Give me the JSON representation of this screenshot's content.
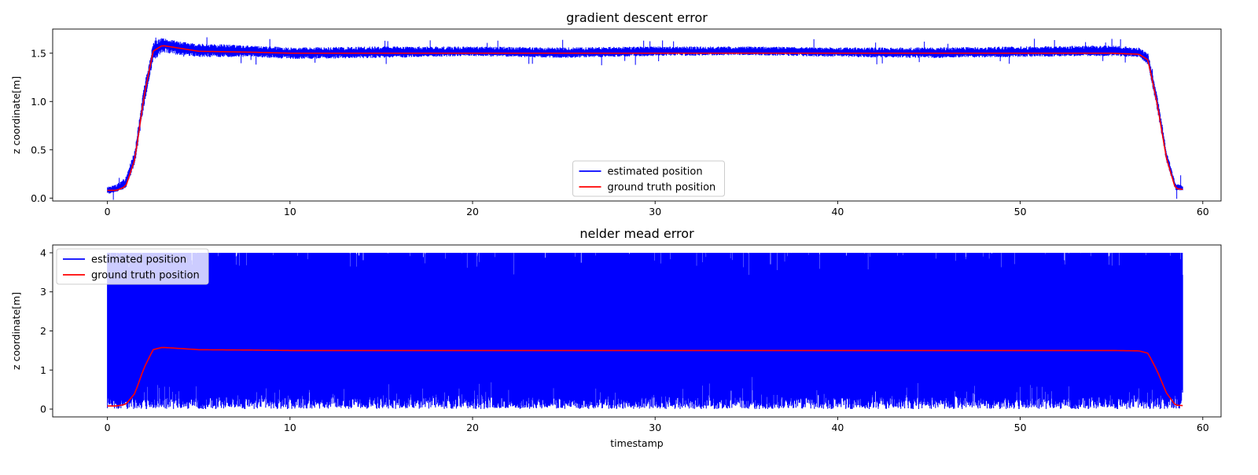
{
  "figure": {
    "background": "#ffffff"
  },
  "chart_data": [
    {
      "type": "line",
      "title": "gradient descent error",
      "xlabel": "",
      "ylabel": "z coordinate[m]",
      "xlim": [
        -3,
        61
      ],
      "ylim": [
        -0.03,
        1.75
      ],
      "xticks": [
        0,
        10,
        20,
        30,
        40,
        50,
        60
      ],
      "xtick_labels": [
        "0",
        "10",
        "20",
        "30",
        "40",
        "50",
        "60"
      ],
      "yticks": [
        0.0,
        0.5,
        1.0,
        1.5
      ],
      "ytick_labels": [
        "0.0",
        "0.5",
        "1.0",
        "1.5"
      ],
      "grid": false,
      "legend_position": "bottom-center",
      "series": [
        {
          "name": "estimated position",
          "color": "#0000ff",
          "x": [
            0,
            0.5,
            1,
            1.5,
            2,
            2.5,
            3,
            4,
            5,
            8,
            10,
            15,
            20,
            25,
            30,
            35,
            40,
            45,
            50,
            55,
            56.5,
            57,
            57.5,
            58,
            58.5,
            58.9
          ],
          "y": [
            0.08,
            0.09,
            0.15,
            0.42,
            1.05,
            1.5,
            1.6,
            1.56,
            1.53,
            1.52,
            1.5,
            1.51,
            1.51,
            1.5,
            1.52,
            1.52,
            1.51,
            1.5,
            1.51,
            1.52,
            1.5,
            1.44,
            1.0,
            0.45,
            0.12,
            0.1
          ],
          "band_low": [
            0.04,
            0.06,
            0.1,
            0.35,
            0.95,
            1.42,
            1.5,
            1.48,
            1.46,
            1.46,
            1.44,
            1.45,
            1.47,
            1.45,
            1.47,
            1.48,
            1.46,
            1.45,
            1.46,
            1.47,
            1.46,
            1.38,
            0.92,
            0.38,
            0.08,
            0.08
          ],
          "band_high": [
            0.12,
            0.14,
            0.22,
            0.5,
            1.15,
            1.62,
            1.66,
            1.62,
            1.6,
            1.58,
            1.56,
            1.57,
            1.57,
            1.56,
            1.57,
            1.57,
            1.56,
            1.56,
            1.57,
            1.58,
            1.56,
            1.5,
            1.08,
            0.5,
            0.15,
            0.13
          ]
        },
        {
          "name": "ground truth position",
          "color": "#ff0000",
          "x": [
            0,
            0.5,
            1,
            1.5,
            2,
            2.5,
            3,
            4,
            5,
            8,
            10,
            15,
            20,
            25,
            30,
            35,
            40,
            45,
            50,
            55,
            56.5,
            57,
            57.5,
            58,
            58.5,
            58.9
          ],
          "y": [
            0.08,
            0.08,
            0.12,
            0.4,
            1.05,
            1.52,
            1.58,
            1.55,
            1.52,
            1.51,
            1.5,
            1.5,
            1.5,
            1.5,
            1.5,
            1.5,
            1.5,
            1.5,
            1.5,
            1.5,
            1.49,
            1.43,
            0.98,
            0.42,
            0.1,
            0.09
          ]
        }
      ]
    },
    {
      "type": "line",
      "title": "nelder mead error",
      "xlabel": "timestamp",
      "ylabel": "z coordinate[m]",
      "xlim": [
        -3,
        61
      ],
      "ylim": [
        -0.2,
        4.2
      ],
      "xticks": [
        0,
        10,
        20,
        30,
        40,
        50,
        60
      ],
      "xtick_labels": [
        "0",
        "10",
        "20",
        "30",
        "40",
        "50",
        "60"
      ],
      "yticks": [
        0,
        1,
        2,
        3,
        4
      ],
      "ytick_labels": [
        "0",
        "1",
        "2",
        "3",
        "4"
      ],
      "grid": false,
      "legend_position": "top-left",
      "series": [
        {
          "name": "estimated position",
          "color": "#0000ff",
          "x": [
            0,
            58.9
          ],
          "y": [
            0.5,
            4.0
          ],
          "band_low": [
            0.0,
            0.0
          ],
          "band_high": [
            4.0,
            4.0
          ]
        },
        {
          "name": "ground truth position",
          "color": "#ff0000",
          "x": [
            0,
            0.5,
            1,
            1.5,
            2,
            2.5,
            3,
            4,
            5,
            8,
            10,
            15,
            20,
            25,
            30,
            35,
            40,
            45,
            50,
            55,
            56.5,
            57,
            57.5,
            58,
            58.5,
            58.9
          ],
          "y": [
            0.08,
            0.08,
            0.12,
            0.4,
            1.05,
            1.52,
            1.58,
            1.55,
            1.52,
            1.51,
            1.5,
            1.5,
            1.5,
            1.5,
            1.5,
            1.5,
            1.5,
            1.5,
            1.5,
            1.5,
            1.49,
            1.43,
            0.98,
            0.42,
            0.1,
            0.09
          ]
        }
      ]
    }
  ]
}
